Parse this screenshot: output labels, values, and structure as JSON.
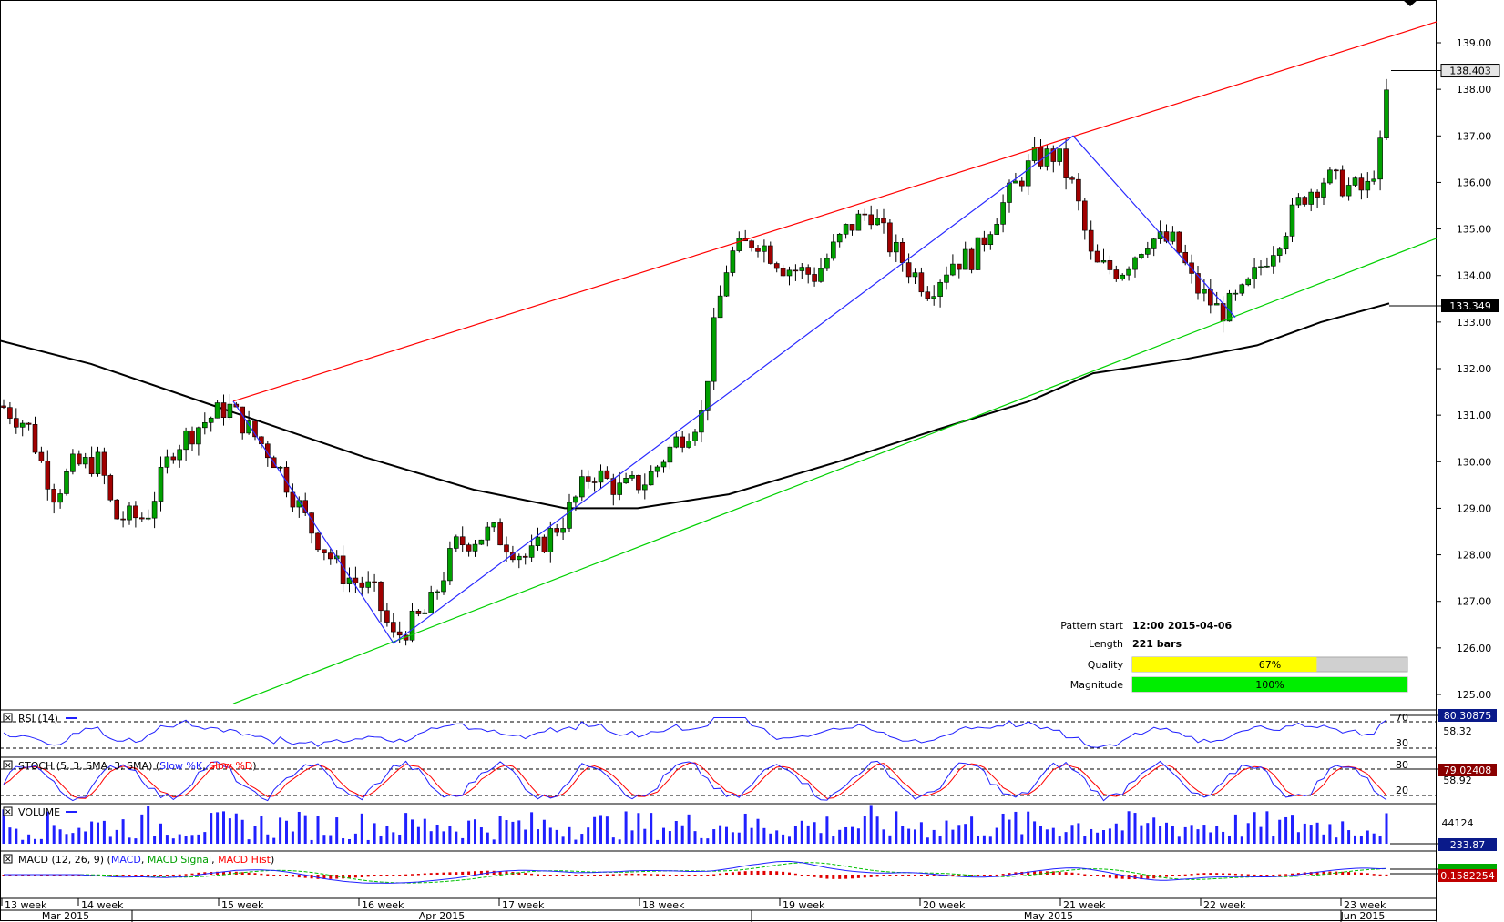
{
  "chart_data": {
    "type": "candlestick",
    "instrument_price_scale": {
      "min": 124.6,
      "max": 139.8
    },
    "y_ticks": [
      "139.00",
      "138.00",
      "137.00",
      "136.00",
      "135.00",
      "134.00",
      "133.00",
      "132.00",
      "131.00",
      "130.00",
      "129.00",
      "128.00",
      "127.00",
      "126.00",
      "125.00"
    ],
    "last_price": "138.403",
    "ma_value": "133.349",
    "week_labels": [
      "13 week",
      "14 week",
      "15 week",
      "16 week",
      "17 week",
      "18 week",
      "19 week",
      "20 week",
      "21 week",
      "22 week",
      "23 week"
    ],
    "month_labels": [
      "Mar 2015",
      "Apr 2015",
      "May 2015",
      "Jun 2015"
    ],
    "pattern": {
      "labels": {
        "start": "Pattern start",
        "length": "Length",
        "quality": "Quality",
        "magnitude": "Magnitude"
      },
      "start_value": "12:00 2015-04-06",
      "length_value": "221 bars",
      "quality_pct": 67,
      "quality_text": "67%",
      "magnitude_pct": 100,
      "magnitude_text": "100%"
    },
    "channel": {
      "upper": [
        [
          0,
          131.3
        ],
        [
          1.3,
          137.0
        ]
      ],
      "lower": [
        [
          0,
          124.8
        ],
        [
          1.3,
          134.0
        ]
      ]
    },
    "zigzag": [
      131.3,
      126.1,
      137.0,
      133.1
    ],
    "indicators": {
      "rsi": {
        "label": "RSI (14)",
        "value": "80.30875",
        "level_high": "70",
        "level_low": "30",
        "mid": "58.32"
      },
      "stoch": {
        "label": "STOCH (5, 3, SMA, 3, SMA)",
        "legend_a": "Slow %K",
        "legend_b": "Slow %D",
        "value": "79.02408",
        "level_high": "80",
        "level_low": "20",
        "mid": "58.92"
      },
      "volume": {
        "label": "VOLUME",
        "value": "233.87",
        "mid": "44124"
      },
      "macd": {
        "label": "MACD (12, 26, 9)",
        "legend_a": "MACD",
        "legend_b": "MACD Signal",
        "legend_c": "MACD Hist",
        "value": "0.1582254"
      }
    },
    "colors": {
      "channel_upper": "#ff0000",
      "channel_lower": "#00d000",
      "zigzag": "#2a2aff",
      "ma": "#000000",
      "bull": "#00a000",
      "bear": "#a00000",
      "rsi": "#2020ff",
      "stoch_k": "#2020ff",
      "stoch_d": "#ff0000",
      "volume": "#2020ff",
      "quality_bar": "#ffff00",
      "magnitude_bar": "#00ee00"
    }
  }
}
